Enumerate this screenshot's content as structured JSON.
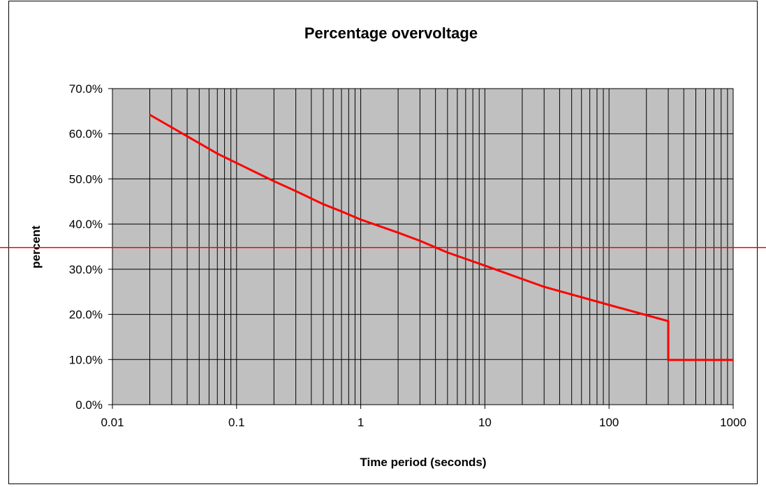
{
  "chart_data": {
    "type": "line",
    "title": "Percentage overvoltage",
    "xlabel": "Time period (seconds)",
    "ylabel": "percent",
    "x_scale": "log",
    "xlim": [
      0.01,
      1000
    ],
    "ylim": [
      0,
      70
    ],
    "x_ticks": [
      0.01,
      0.1,
      1,
      10,
      100,
      1000
    ],
    "x_tick_labels": [
      "0.01",
      "0.1",
      "1",
      "10",
      "100",
      "1000"
    ],
    "y_ticks": [
      0,
      10,
      20,
      30,
      40,
      50,
      60,
      70
    ],
    "y_tick_labels": [
      "0.0%",
      "10.0%",
      "20.0%",
      "30.0%",
      "40.0%",
      "50.0%",
      "60.0%",
      "70.0%"
    ],
    "grid": true,
    "legend": "none",
    "plot_background": "#c0c0c0",
    "series": [
      {
        "color": "#ff0000",
        "x": [
          0.02,
          0.07,
          0.2,
          0.3,
          0.5,
          0.7,
          1,
          2,
          3,
          5,
          7,
          10,
          30,
          100,
          300,
          300,
          1000
        ],
        "y": [
          64.2,
          55.6,
          49.5,
          47.3,
          44.4,
          42.8,
          41.0,
          38.1,
          36.3,
          33.7,
          32.3,
          30.8,
          26.1,
          22.1,
          18.5,
          9.9,
          9.9
        ]
      }
    ],
    "reference_line": {
      "y": 34.8,
      "color": "#ff0000"
    }
  }
}
